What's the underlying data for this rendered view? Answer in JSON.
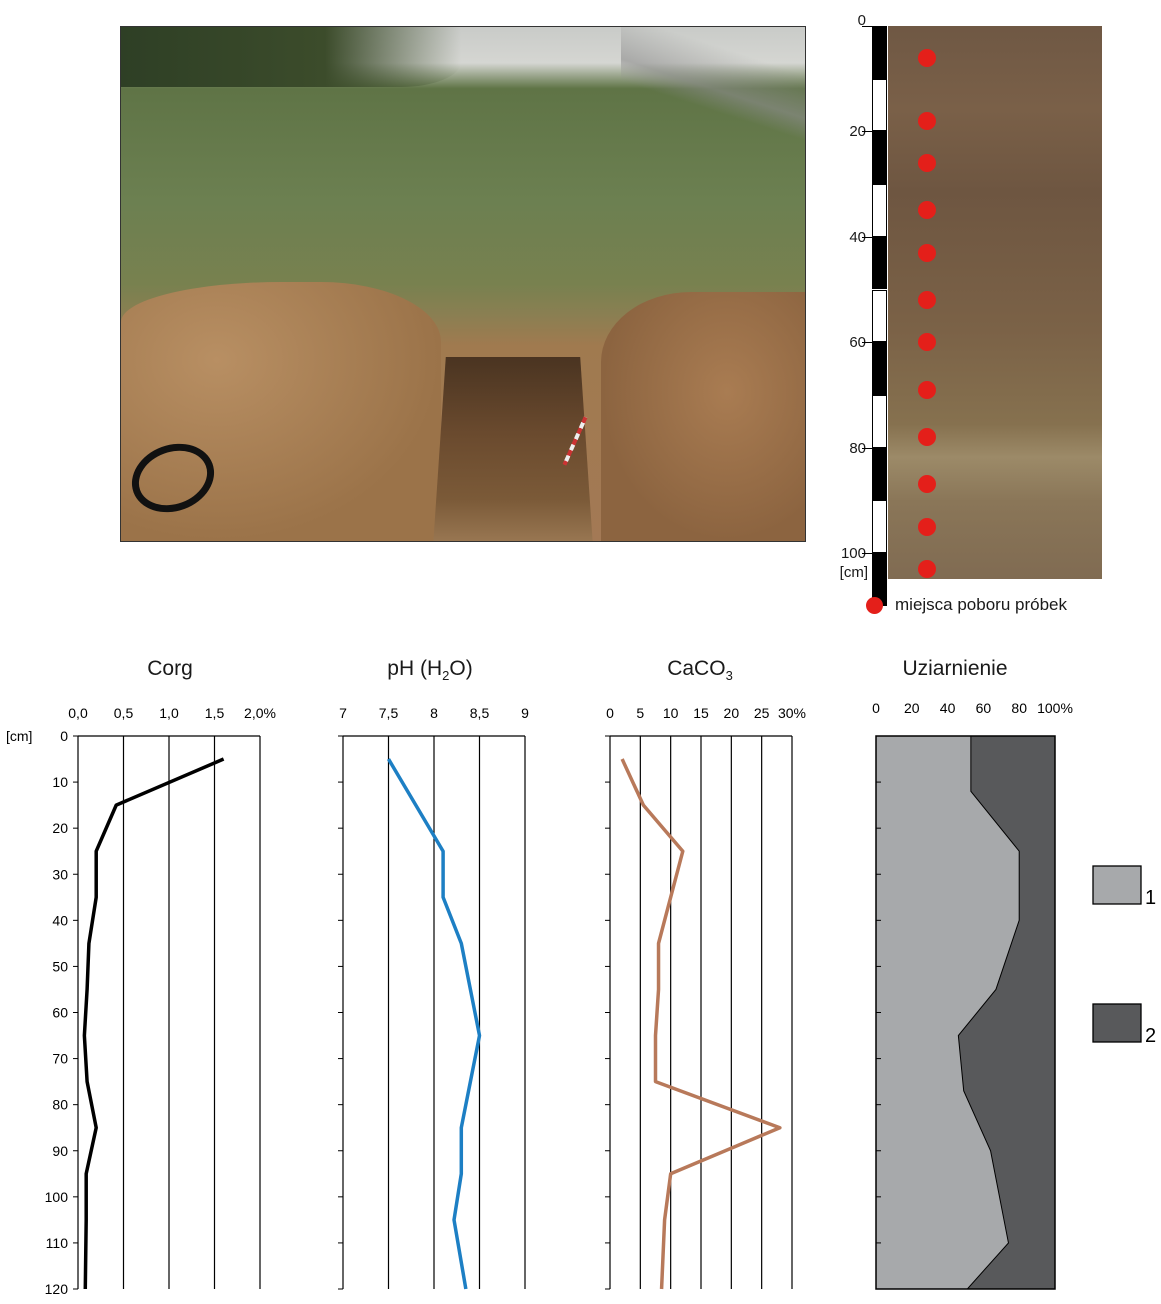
{
  "photo_profile": {
    "depth_labels": [
      "0",
      "20",
      "40",
      "60",
      "80",
      "100"
    ],
    "unit_label": "[cm]",
    "sample_depths_cm": [
      6,
      18,
      26,
      35,
      43,
      52,
      60,
      69,
      78,
      87,
      95,
      103
    ],
    "legend_label": "miejsca poboru próbek",
    "dot_color": "#e41f1a"
  },
  "chart_data": [
    {
      "type": "line",
      "title": "Corg",
      "x_ticks": [
        "0,0",
        "0,5",
        "1,0",
        "1,5",
        "2,0%"
      ],
      "xlim": [
        0,
        2.0
      ],
      "y_unit": "[cm]",
      "y_ticks": [
        "0",
        "10",
        "20",
        "30",
        "40",
        "50",
        "60",
        "70",
        "80",
        "90",
        "100",
        "110",
        "120"
      ],
      "ylim": [
        0,
        120
      ],
      "color": "#000000",
      "depth": [
        5,
        15,
        25,
        35,
        45,
        55,
        65,
        75,
        85,
        95,
        105,
        120
      ],
      "values": [
        1.6,
        0.42,
        0.2,
        0.2,
        0.12,
        0.1,
        0.07,
        0.1,
        0.2,
        0.09,
        0.09,
        0.08
      ]
    },
    {
      "type": "line",
      "title": "pH (H",
      "title_sub": "2",
      "title_end": "O)",
      "x_ticks": [
        "7",
        "7,5",
        "8",
        "8,5",
        "9"
      ],
      "xlim": [
        7,
        9
      ],
      "ylim": [
        0,
        120
      ],
      "color": "#1d7fc4",
      "depth": [
        5,
        15,
        25,
        35,
        45,
        55,
        65,
        75,
        85,
        95,
        105,
        120
      ],
      "values": [
        7.5,
        7.8,
        8.1,
        8.1,
        8.3,
        8.4,
        8.5,
        8.4,
        8.3,
        8.3,
        8.22,
        8.35
      ]
    },
    {
      "type": "line",
      "title": "CaCO",
      "title_sub": "3",
      "x_ticks": [
        "0",
        "5",
        "10",
        "15",
        "20",
        "25",
        "30%"
      ],
      "xlim": [
        0,
        30
      ],
      "ylim": [
        0,
        120
      ],
      "color": "#b8795a",
      "depth": [
        5,
        15,
        25,
        35,
        45,
        55,
        65,
        75,
        85,
        95,
        105,
        120
      ],
      "values": [
        2,
        5.5,
        12,
        10,
        8,
        8,
        7.5,
        7.5,
        28,
        10,
        9,
        8.5
      ]
    },
    {
      "type": "area",
      "title": "Uziarnienie",
      "x_ticks": [
        "0",
        "20",
        "40",
        "60",
        "80",
        "100%"
      ],
      "xlim": [
        0,
        100
      ],
      "ylim": [
        0,
        120
      ],
      "depth": [
        0,
        12,
        25,
        40,
        55,
        65,
        77,
        90,
        110,
        120
      ],
      "boundary": [
        53,
        53,
        80,
        80,
        67,
        46,
        49,
        64,
        74,
        51
      ],
      "series": [
        {
          "name": "1",
          "color": "#a7a9ab"
        },
        {
          "name": "2",
          "color": "#58595b"
        }
      ]
    }
  ]
}
